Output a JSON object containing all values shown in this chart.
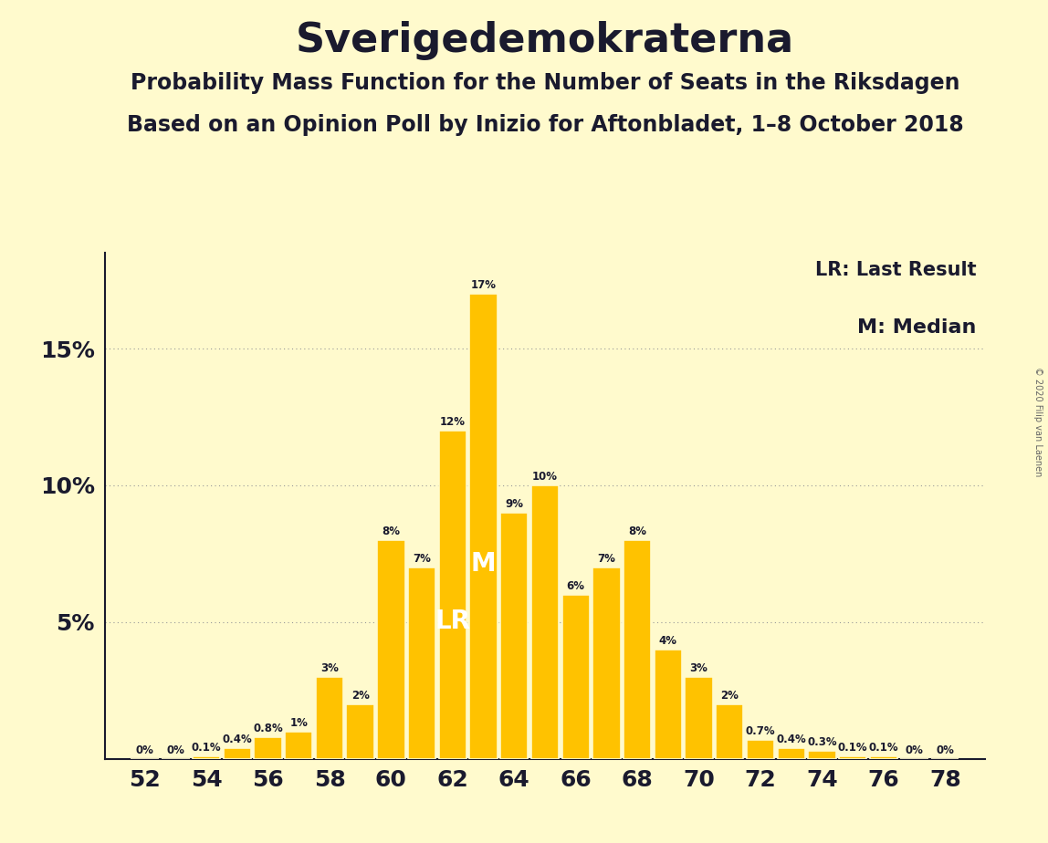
{
  "title": "Sverigedemokraterna",
  "subtitle1": "Probability Mass Function for the Number of Seats in the Riksdagen",
  "subtitle2": "Based on an Opinion Poll by Inizio for Aftonbladet, 1–8 October 2018",
  "copyright": "© 2020 Filip van Laenen",
  "legend_lr": "LR: Last Result",
  "legend_m": "M: Median",
  "seats": [
    52,
    53,
    54,
    55,
    56,
    57,
    58,
    59,
    60,
    61,
    62,
    63,
    64,
    65,
    66,
    67,
    68,
    69,
    70,
    71,
    72,
    73,
    74,
    75,
    76,
    77,
    78
  ],
  "probabilities": [
    0.0,
    0.0,
    0.1,
    0.4,
    0.8,
    1.0,
    3.0,
    2.0,
    8.0,
    7.0,
    12.0,
    17.0,
    9.0,
    10.0,
    6.0,
    7.0,
    8.0,
    4.0,
    3.0,
    2.0,
    0.7,
    0.4,
    0.3,
    0.1,
    0.1,
    0.0,
    0.0
  ],
  "bar_color": "#FFC200",
  "bar_edge_color": "#FFFACD",
  "background_color": "#FFFACD",
  "text_color": "#1a1a2e",
  "lr_seat": 62,
  "median_seat": 63,
  "ylim": [
    0,
    18.5
  ],
  "yticks": [
    5,
    10,
    15
  ],
  "title_fontsize": 32,
  "subtitle_fontsize": 17,
  "tick_fontsize": 18,
  "label_fontsize_small": 8.5,
  "legend_fontsize": 15,
  "lr_label_fontsize": 20,
  "copyright_fontsize": 7,
  "bar_width": 0.9,
  "xlim_left": 50.7,
  "xlim_right": 79.3,
  "grid_color": "#999999",
  "grid_linewidth": 0.8,
  "spine_color": "#1a1a2e"
}
